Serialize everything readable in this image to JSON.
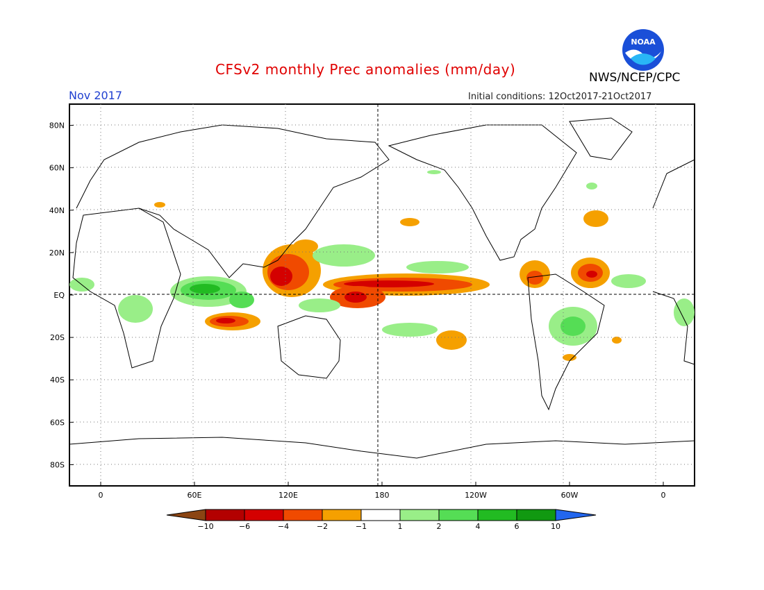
{
  "header": {
    "title": "CFSv2 monthly Prec anomalies (mm/day)",
    "agency": "NWS/NCEP/CPC",
    "month": "Nov 2017",
    "initial_conditions": "Initial conditions: 12Oct2017-21Oct2017",
    "logo_text": "NOAA"
  },
  "colors": {
    "title": "#e00000",
    "month": "#2040d0",
    "ocean_land_bg": "#ffffff",
    "coast": "#000000"
  },
  "map": {
    "lat_labels": [
      "80N",
      "60N",
      "40N",
      "20N",
      "EQ",
      "20S",
      "40S",
      "60S",
      "80S"
    ],
    "lon_labels": [
      "0",
      "60E",
      "120E",
      "180",
      "120W",
      "60W",
      "0"
    ],
    "lat_values": [
      80,
      60,
      40,
      20,
      0,
      -20,
      -40,
      -60,
      -80
    ],
    "lon_values": [
      0,
      60,
      120,
      180,
      240,
      300,
      360
    ],
    "lon_range": [
      -20,
      380
    ],
    "lat_range": [
      -90,
      90
    ]
  },
  "colorbar": {
    "labels": [
      "-10",
      "-6",
      "-4",
      "-2",
      "-1",
      "1",
      "2",
      "4",
      "6",
      "10"
    ],
    "colors": [
      "#8b4513",
      "#b30000",
      "#d40000",
      "#f04a00",
      "#f5a000",
      "#ffffff",
      "#99ee88",
      "#55dd55",
      "#22bb22",
      "#119911",
      "#2266ee"
    ]
  }
}
